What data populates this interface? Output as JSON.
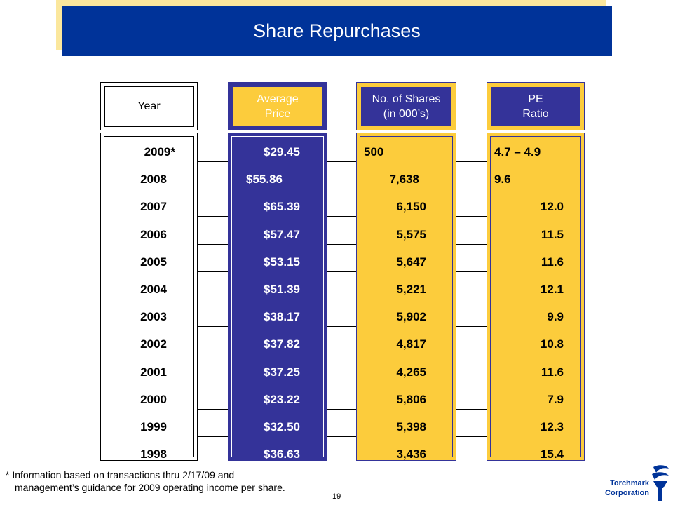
{
  "title": "Share Repurchases",
  "headers": {
    "year": "Year",
    "price_line1": "Average",
    "price_line2": "Price",
    "shares_line1": "No. of Shares",
    "shares_line2": "(in 000’s)",
    "pe_line1": "PE",
    "pe_line2": "Ratio"
  },
  "rows": [
    {
      "year": "2009*",
      "price": "$29.45",
      "shares": "500",
      "pe": "4.7 – 4.9"
    },
    {
      "year": "2008",
      "price": "$55.86",
      "shares": "7,638",
      "pe": "9.6"
    },
    {
      "year": "2007",
      "price": "$65.39",
      "shares": "6,150",
      "pe": "12.0"
    },
    {
      "year": "2006",
      "price": "$57.47",
      "shares": "5,575",
      "pe": "11.5"
    },
    {
      "year": "2005",
      "price": "$53.15",
      "shares": "5,647",
      "pe": "11.6"
    },
    {
      "year": "2004",
      "price": "$51.39",
      "shares": "5,221",
      "pe": "12.1"
    },
    {
      "year": "2003",
      "price": "$38.17",
      "shares": "5,902",
      "pe": "9.9"
    },
    {
      "year": "2002",
      "price": "$37.82",
      "shares": "4,817",
      "pe": "10.8"
    },
    {
      "year": "2001",
      "price": "$37.25",
      "shares": "4,265",
      "pe": "11.6"
    },
    {
      "year": "2000",
      "price": "$23.22",
      "shares": "5,806",
      "pe": "7.9"
    },
    {
      "year": "1999",
      "price": "$32.50",
      "shares": "5,398",
      "pe": "12.3"
    },
    {
      "year": "1998",
      "price": "$36.63",
      "shares": "3,436",
      "pe": "15.4"
    }
  ],
  "footnote": {
    "marker": "*",
    "line1": "Information based on transactions thru 2/17/09 and",
    "line2": "management’s guidance for 2009 operating income per share."
  },
  "page_number": "19",
  "logo": {
    "line1": "Torchmark",
    "line2": "Corporation",
    "icon": "torch-icon"
  },
  "colors": {
    "banner": "#003399",
    "banner_shadow": "#fbe79d",
    "navy": "#343399",
    "gold": "#fccc3c"
  }
}
